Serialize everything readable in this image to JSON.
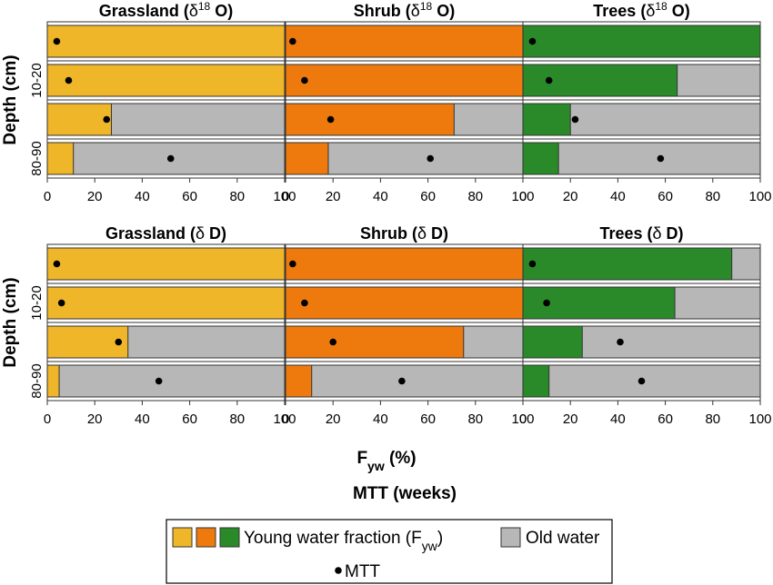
{
  "chart_data": {
    "type": "bar",
    "subtype": "stacked-horizontal-100",
    "colors": {
      "grassland": "#F0B62A",
      "shrub": "#EE7A0E",
      "trees": "#2A8A2A",
      "old_water": "#B7B7B7",
      "mtt_dot": "#000000"
    },
    "depth_tick_labels": [
      "10-20",
      "80-90"
    ],
    "y_axis_label": "Depth (cm)",
    "x_ticks": [
      0,
      20,
      40,
      60,
      80,
      100
    ],
    "xlim": [
      0,
      100
    ],
    "x_axis_label_main": "F",
    "x_axis_label_sub": "yw",
    "x_axis_label_tail": " (%)",
    "second_axis_label": "MTT (weeks)",
    "rows": [
      {
        "panels": [
          {
            "title_main": "Grassland (",
            "title_sym": "δ",
            "title_sup": "18",
            "title_tail": " O)",
            "color_key": "grassland",
            "fyw": [
              100,
              100,
              27,
              11
            ],
            "mtt": [
              4,
              9,
              25,
              52
            ]
          },
          {
            "title_main": "Shrub (",
            "title_sym": "δ",
            "title_sup": "18",
            "title_tail": " O)",
            "color_key": "shrub",
            "fyw": [
              100,
              100,
              71,
              18
            ],
            "mtt": [
              3,
              8,
              19,
              61
            ]
          },
          {
            "title_main": "Trees (",
            "title_sym": "δ",
            "title_sup": "18",
            "title_tail": " O)",
            "color_key": "trees",
            "fyw": [
              100,
              65,
              20,
              15
            ],
            "mtt": [
              4,
              11,
              22,
              58
            ]
          }
        ]
      },
      {
        "panels": [
          {
            "title_main": "Grassland (",
            "title_sym": "δ",
            "title_sup": "",
            "title_tail": " D)",
            "color_key": "grassland",
            "fyw": [
              100,
              100,
              34,
              5
            ],
            "mtt": [
              4,
              6,
              30,
              47
            ]
          },
          {
            "title_main": "Shrub (",
            "title_sym": "δ",
            "title_sup": "",
            "title_tail": " D)",
            "color_key": "shrub",
            "fyw": [
              100,
              100,
              75,
              11
            ],
            "mtt": [
              3,
              8,
              20,
              49
            ]
          },
          {
            "title_main": "Trees (",
            "title_sym": "δ",
            "title_sup": "",
            "title_tail": " D)",
            "color_key": "trees",
            "fyw": [
              88,
              64,
              25,
              11
            ],
            "mtt": [
              4,
              10,
              41,
              50
            ]
          }
        ]
      }
    ],
    "legend": {
      "young_water_label_main": "Young water fraction (F",
      "young_water_label_sub": "yw",
      "young_water_label_tail": ")",
      "old_water_label": "Old water",
      "mtt_label": "MTT"
    }
  }
}
